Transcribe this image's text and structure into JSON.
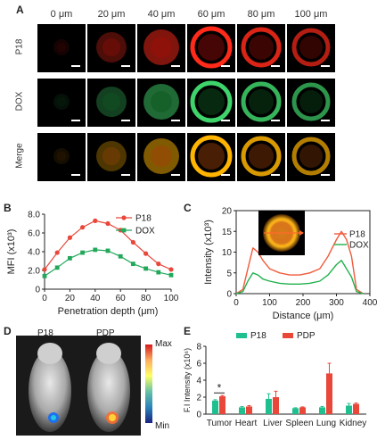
{
  "panel_a": {
    "letter": "A",
    "depths": [
      "0 μm",
      "20 μm",
      "40 μm",
      "60 μm",
      "80 μm",
      "100 μm"
    ],
    "rows": [
      "P18",
      "DOX",
      "Merge"
    ]
  },
  "panel_b": {
    "letter": "B"
  },
  "panel_c": {
    "letter": "C"
  },
  "panel_d": {
    "letter": "D",
    "labels": [
      "P18",
      "PDP"
    ],
    "colorbar_max": "Max",
    "colorbar_min": "Min"
  },
  "panel_e": {
    "letter": "E"
  },
  "chart_data": [
    {
      "type": "line",
      "panel": "B",
      "xlabel": "Penetration depth (μm)",
      "ylabel": "MFI (x10³)",
      "xlim": [
        0,
        100
      ],
      "ylim": [
        0,
        8
      ],
      "xticks": [
        "0",
        "20",
        "40",
        "60",
        "80",
        "100"
      ],
      "yticks": [
        "0",
        "2.0",
        "4.0",
        "6.0",
        "8.0"
      ],
      "x": [
        0,
        10,
        20,
        30,
        40,
        50,
        60,
        70,
        80,
        90,
        100
      ],
      "legend_position": "top-right",
      "series": [
        {
          "name": "P18",
          "color": "#e8473a",
          "marker": "circle",
          "values": [
            2.1,
            3.9,
            5.5,
            6.6,
            7.3,
            7.0,
            6.3,
            5.0,
            3.8,
            2.7,
            2.1
          ]
        },
        {
          "name": "DOX",
          "color": "#22a85a",
          "marker": "square",
          "values": [
            1.4,
            2.3,
            3.3,
            3.9,
            4.2,
            4.1,
            3.5,
            2.7,
            2.2,
            1.8,
            1.5
          ]
        }
      ]
    },
    {
      "type": "line",
      "panel": "C",
      "xlabel": "Distance (μm)",
      "ylabel": "Intensity (x10³)",
      "xlim": [
        0,
        400
      ],
      "ylim": [
        0,
        20
      ],
      "xticks": [
        "0",
        "100",
        "200",
        "300",
        "400"
      ],
      "yticks": [
        "0",
        "5",
        "10",
        "15",
        "20"
      ],
      "legend_position": "right",
      "series": [
        {
          "name": "P18",
          "color": "#f05a3c",
          "x": [
            0,
            20,
            35,
            50,
            65,
            80,
            100,
            130,
            160,
            190,
            220,
            250,
            275,
            300,
            315,
            330,
            345,
            360,
            380
          ],
          "values": [
            0,
            1,
            6,
            11,
            10,
            8,
            6,
            5,
            4.5,
            4.5,
            5,
            6,
            9,
            13,
            15,
            13,
            9,
            1,
            0
          ]
        },
        {
          "name": "DOX",
          "color": "#22b14c",
          "x": [
            0,
            20,
            35,
            50,
            65,
            80,
            100,
            130,
            160,
            190,
            220,
            250,
            275,
            300,
            315,
            330,
            345,
            360,
            380
          ],
          "values": [
            0,
            0.5,
            3,
            5,
            4.5,
            3.5,
            3,
            2.5,
            2.3,
            2.3,
            2.5,
            3,
            4.5,
            7,
            8,
            6,
            4,
            0.5,
            0
          ]
        }
      ]
    },
    {
      "type": "bar",
      "panel": "E",
      "ylabel": "F.I Intensity (x10⁶)",
      "ylim": [
        0,
        8
      ],
      "yticks": [
        "0",
        "2",
        "4",
        "6",
        "8"
      ],
      "categories": [
        "Tumor",
        "Heart",
        "Liver",
        "Spleen",
        "Lung",
        "Kidney"
      ],
      "legend_position": "top",
      "annotation": "*",
      "series": [
        {
          "name": "P18",
          "color": "#1fbf8f",
          "values": [
            1.6,
            0.8,
            1.8,
            0.7,
            0.8,
            1.0
          ],
          "errors": [
            0.1,
            0.1,
            0.6,
            0.05,
            0.1,
            0.25
          ]
        },
        {
          "name": "PDP",
          "color": "#e8473a",
          "values": [
            2.1,
            0.9,
            2.0,
            0.8,
            4.8,
            1.2
          ],
          "errors": [
            0.1,
            0.1,
            0.7,
            0.05,
            1.2,
            0.1
          ]
        }
      ]
    }
  ]
}
